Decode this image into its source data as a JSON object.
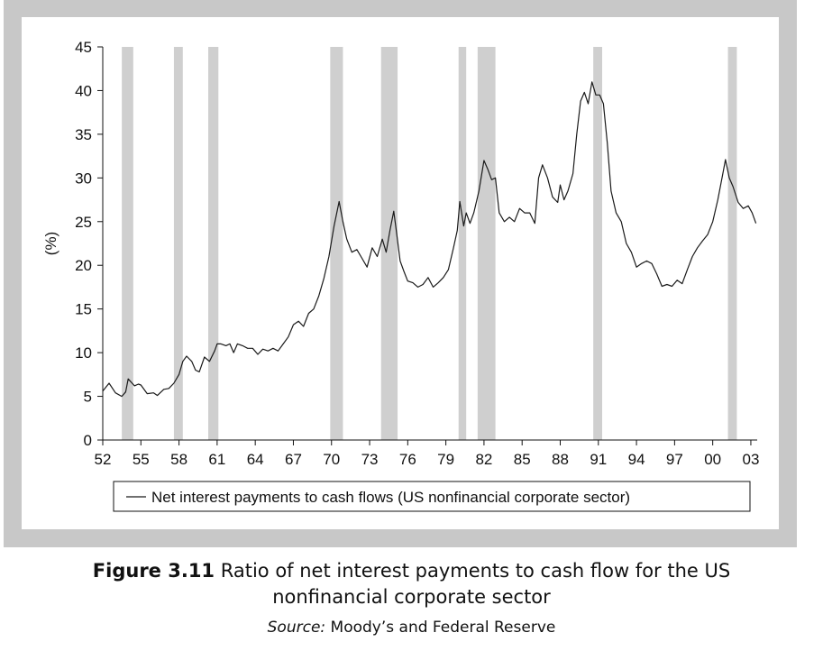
{
  "chart_data": {
    "type": "line",
    "title": "",
    "xlabel": "",
    "ylabel": "(%)",
    "ylim": [
      0,
      45
    ],
    "yticks": [
      0,
      5,
      10,
      15,
      20,
      25,
      30,
      35,
      40,
      45
    ],
    "xlim": [
      1952,
      2003.5
    ],
    "xtick_values": [
      1952,
      1955,
      1958,
      1961,
      1964,
      1967,
      1970,
      1973,
      1976,
      1979,
      1982,
      1985,
      1988,
      1991,
      1994,
      1997,
      2000,
      2003
    ],
    "xtick_labels": [
      "52",
      "55",
      "58",
      "61",
      "64",
      "67",
      "70",
      "73",
      "76",
      "79",
      "82",
      "85",
      "88",
      "91",
      "94",
      "97",
      "00",
      "03"
    ],
    "grid": false,
    "legend_position": "bottom",
    "recessions": [
      [
        1953.5,
        1954.4
      ],
      [
        1957.6,
        1958.3
      ],
      [
        1960.3,
        1961.1
      ],
      [
        1969.9,
        1970.9
      ],
      [
        1973.9,
        1975.2
      ],
      [
        1980.0,
        1980.6
      ],
      [
        1981.5,
        1982.9
      ],
      [
        1990.6,
        1991.3
      ],
      [
        2001.2,
        2001.9
      ]
    ],
    "series": [
      {
        "name": "Net interest payments to cash flows (US nonfinancial corporate sector)",
        "color": "#1a1a1a",
        "x": [
          1952.0,
          1952.5,
          1953.0,
          1953.5,
          1953.8,
          1954.0,
          1954.5,
          1954.8,
          1955.0,
          1955.5,
          1956.0,
          1956.3,
          1956.8,
          1957.2,
          1957.6,
          1958.0,
          1958.3,
          1958.6,
          1959.0,
          1959.3,
          1959.6,
          1960.0,
          1960.4,
          1960.8,
          1961.0,
          1961.3,
          1961.7,
          1962.0,
          1962.3,
          1962.6,
          1963.0,
          1963.4,
          1963.8,
          1964.2,
          1964.6,
          1965.0,
          1965.4,
          1965.8,
          1966.2,
          1966.6,
          1967.0,
          1967.4,
          1967.8,
          1968.2,
          1968.6,
          1969.0,
          1969.4,
          1969.8,
          1970.2,
          1970.6,
          1970.9,
          1971.2,
          1971.6,
          1972.0,
          1972.4,
          1972.8,
          1973.2,
          1973.6,
          1974.0,
          1974.3,
          1974.6,
          1974.9,
          1975.1,
          1975.4,
          1975.7,
          1976.0,
          1976.4,
          1976.8,
          1977.2,
          1977.6,
          1978.0,
          1978.4,
          1978.8,
          1979.2,
          1979.6,
          1979.9,
          1980.1,
          1980.4,
          1980.6,
          1980.9,
          1981.2,
          1981.6,
          1982.0,
          1982.3,
          1982.6,
          1982.9,
          1983.2,
          1983.6,
          1984.0,
          1984.4,
          1984.8,
          1985.2,
          1985.6,
          1986.0,
          1986.3,
          1986.6,
          1987.0,
          1987.4,
          1987.8,
          1988.0,
          1988.3,
          1988.6,
          1989.0,
          1989.3,
          1989.6,
          1989.9,
          1990.2,
          1990.5,
          1990.8,
          1991.1,
          1991.4,
          1991.7,
          1992.0,
          1992.4,
          1992.8,
          1993.2,
          1993.6,
          1994.0,
          1994.4,
          1994.8,
          1995.2,
          1995.6,
          1996.0,
          1996.4,
          1996.8,
          1997.2,
          1997.6,
          1998.0,
          1998.4,
          1998.8,
          1999.2,
          1999.6,
          2000.0,
          2000.4,
          2000.8,
          2001.0,
          2001.3,
          2001.6,
          2002.0,
          2002.4,
          2002.8,
          2003.1,
          2003.4
        ],
        "y": [
          5.6,
          6.5,
          5.4,
          5.0,
          5.5,
          7.0,
          6.2,
          6.4,
          6.3,
          5.3,
          5.4,
          5.1,
          5.8,
          5.9,
          6.5,
          7.5,
          9.0,
          9.6,
          9.0,
          8.0,
          7.8,
          9.5,
          9.0,
          10.2,
          11.0,
          11.0,
          10.8,
          11.0,
          10.0,
          11.0,
          10.8,
          10.5,
          10.5,
          9.8,
          10.4,
          10.2,
          10.5,
          10.2,
          11.0,
          11.8,
          13.2,
          13.6,
          13.0,
          14.5,
          15.0,
          16.5,
          18.5,
          21.0,
          24.5,
          27.3,
          25.0,
          23.0,
          21.5,
          21.8,
          20.8,
          19.8,
          22.0,
          21.0,
          23.0,
          21.5,
          24.0,
          26.2,
          24.0,
          20.5,
          19.3,
          18.2,
          18.0,
          17.5,
          17.8,
          18.6,
          17.5,
          18.0,
          18.6,
          19.5,
          22.0,
          24.0,
          27.3,
          24.5,
          26.0,
          24.8,
          26.0,
          28.5,
          32.0,
          31.0,
          29.8,
          30.0,
          26.0,
          25.0,
          25.5,
          25.0,
          26.5,
          26.0,
          26.0,
          24.8,
          30.0,
          31.5,
          30.0,
          27.8,
          27.2,
          29.2,
          27.5,
          28.5,
          30.5,
          35.0,
          38.8,
          39.8,
          38.5,
          41.0,
          39.5,
          39.5,
          38.5,
          34.0,
          28.5,
          26.0,
          25.0,
          22.5,
          21.5,
          19.8,
          20.2,
          20.5,
          20.2,
          19.0,
          17.6,
          17.8,
          17.6,
          18.3,
          17.9,
          19.5,
          21.0,
          22.0,
          22.8,
          23.5,
          25.0,
          27.5,
          30.5,
          32.1,
          30.0,
          29.0,
          27.2,
          26.5,
          26.8,
          26.0,
          24.8
        ]
      }
    ]
  },
  "caption": {
    "figure_number": "Figure 3.11",
    "text_line1": "Ratio of net interest payments to cash flow for the US",
    "text_line2": "nonfinancial corporate sector"
  },
  "source": {
    "label": "Source:",
    "text": "Moody’s and Federal Reserve"
  }
}
